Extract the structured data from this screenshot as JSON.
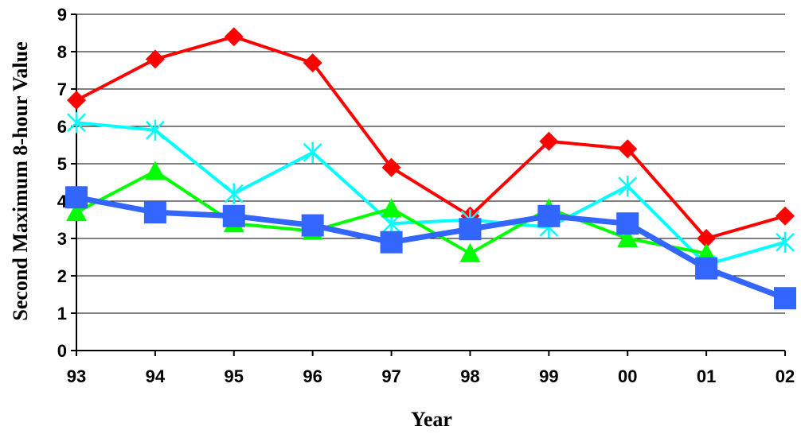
{
  "chart_data": {
    "type": "line",
    "xlabel": "Year",
    "ylabel": "Second Maximum 8-hour Value",
    "categories": [
      "93",
      "94",
      "95",
      "96",
      "97",
      "98",
      "99",
      "00",
      "01",
      "02"
    ],
    "ylim": [
      0,
      9
    ],
    "yticks": [
      "0",
      "1",
      "2",
      "3",
      "4",
      "5",
      "6",
      "7",
      "8",
      "9"
    ],
    "grid": true,
    "legend": "none",
    "series": [
      {
        "color": "#ff0000",
        "marker": "diamond",
        "values": [
          6.7,
          7.8,
          8.4,
          7.7,
          4.9,
          3.6,
          5.6,
          5.4,
          3.0,
          3.6
        ]
      },
      {
        "color": "#00ffff",
        "marker": "x",
        "values": [
          6.1,
          5.9,
          4.2,
          5.3,
          3.4,
          3.5,
          3.3,
          4.4,
          2.3,
          2.9
        ]
      },
      {
        "color": "#00ff00",
        "marker": "triangle",
        "values": [
          3.7,
          4.8,
          3.4,
          3.2,
          3.8,
          2.6,
          3.8,
          3.0,
          2.6,
          null
        ]
      },
      {
        "color": "#3366ff",
        "marker": "square",
        "values": [
          4.1,
          3.7,
          3.6,
          3.35,
          2.9,
          3.25,
          3.6,
          3.4,
          2.2,
          1.4
        ]
      }
    ]
  }
}
